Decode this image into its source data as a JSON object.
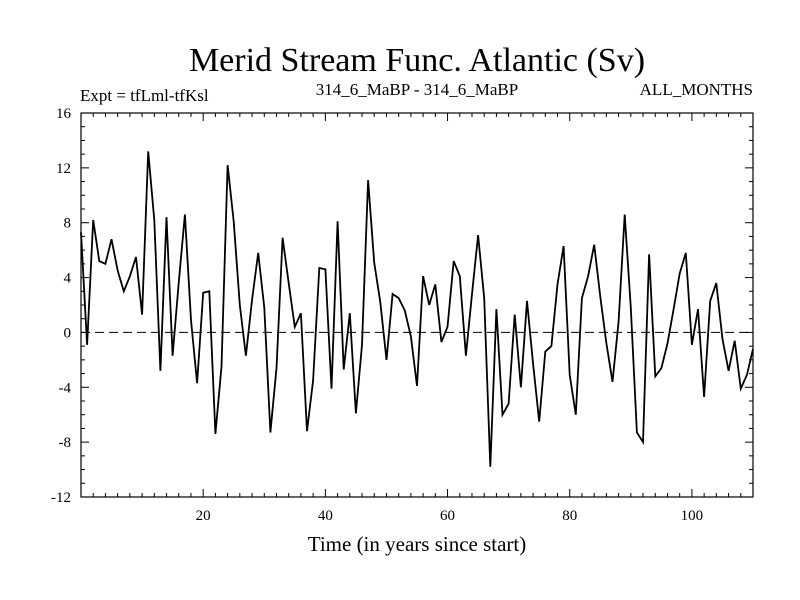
{
  "chart_data": {
    "type": "line",
    "title": "Merid Stream Func. Atlantic (Sv)",
    "subtitle_left": "Expt = tfLml-tfKsl",
    "subtitle_center": "314_6_MaBP - 314_6_MaBP",
    "subtitle_right": "ALL_MONTHS",
    "xlabel": "Time (in years since start)",
    "ylabel": "",
    "xlim": [
      0,
      110
    ],
    "ylim": [
      -12,
      16
    ],
    "xticks": [
      20,
      40,
      60,
      80,
      100
    ],
    "xtick_labels": [
      "20",
      "40",
      "60",
      "80",
      "100"
    ],
    "yticks": [
      -12,
      -8,
      -4,
      0,
      4,
      8,
      12,
      16
    ],
    "ytick_labels": [
      "-12",
      "-8",
      "-4",
      "0",
      "4",
      "8",
      "12",
      "16"
    ],
    "reference_line": 0,
    "series": [
      {
        "name": "Merid Stream Func. Atlantic",
        "x": [
          0,
          1,
          2,
          3,
          4,
          5,
          6,
          7,
          8,
          9,
          10,
          11,
          12,
          13,
          14,
          15,
          16,
          17,
          18,
          19,
          20,
          21,
          22,
          23,
          24,
          25,
          26,
          27,
          28,
          29,
          30,
          31,
          32,
          33,
          34,
          35,
          36,
          37,
          38,
          39,
          40,
          41,
          42,
          43,
          44,
          45,
          46,
          47,
          48,
          49,
          50,
          51,
          52,
          53,
          54,
          55,
          56,
          57,
          58,
          59,
          60,
          61,
          62,
          63,
          64,
          65,
          66,
          67,
          68,
          69,
          70,
          71,
          72,
          73,
          74,
          75,
          76,
          77,
          78,
          79,
          80,
          81,
          82,
          83,
          84,
          85,
          86,
          87,
          88,
          89,
          90,
          91,
          92,
          93,
          94,
          95,
          96,
          97,
          98,
          99,
          100,
          101,
          102,
          103,
          104,
          105,
          106,
          107,
          108,
          109,
          110
        ],
        "values": [
          7.3,
          -0.9,
          8.2,
          5.2,
          5.0,
          6.8,
          4.5,
          3.0,
          4.1,
          5.5,
          1.3,
          13.2,
          8.2,
          -2.8,
          8.4,
          -1.7,
          3.6,
          8.6,
          0.9,
          -3.7,
          2.9,
          3.0,
          -7.4,
          -2.5,
          12.2,
          8.1,
          2.0,
          -1.7,
          2.4,
          5.8,
          1.8,
          -7.3,
          -2.6,
          6.9,
          3.6,
          0.4,
          1.4,
          -7.2,
          -3.5,
          4.7,
          4.6,
          -4.1,
          8.1,
          -2.7,
          1.4,
          -5.9,
          -0.9,
          11.1,
          5.1,
          2.2,
          -2.0,
          2.8,
          2.5,
          1.6,
          -0.3,
          -3.9,
          4.1,
          2.0,
          3.5,
          -0.7,
          0.4,
          5.2,
          4.1,
          -1.7,
          2.8,
          7.1,
          2.5,
          -9.8,
          1.7,
          -6.0,
          -5.2,
          1.3,
          -4.0,
          2.3,
          -2.3,
          -6.5,
          -1.4,
          -1.0,
          3.5,
          6.3,
          -3.1,
          -6.0,
          2.5,
          4.1,
          6.4,
          2.6,
          -0.8,
          -3.6,
          0.8,
          8.6,
          1.8,
          -7.3,
          -8.0,
          5.7,
          -3.2,
          -2.6,
          -0.8,
          1.7,
          4.3,
          5.8,
          -0.9,
          1.7,
          -4.7,
          2.3,
          3.6,
          -0.5,
          -2.8,
          -0.6,
          -4.1,
          -3.1,
          -1.2
        ]
      }
    ]
  }
}
